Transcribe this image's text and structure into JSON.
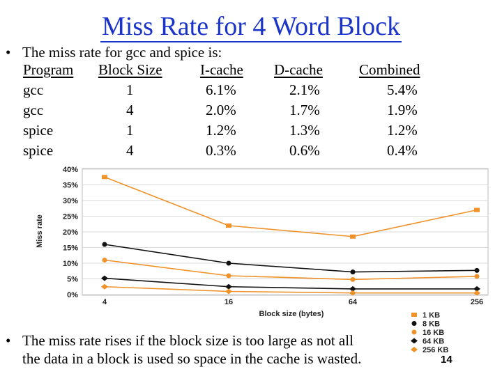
{
  "title": "Miss Rate for 4 Word Block",
  "intro": "The miss rate for gcc and spice is:",
  "table": {
    "headers": [
      "Program",
      "Block Size",
      "I-cache",
      "D-cache",
      "Combined"
    ],
    "rows": [
      [
        "gcc",
        "1",
        "6.1%",
        "2.1%",
        "5.4%"
      ],
      [
        "gcc",
        "4",
        "2.0%",
        "1.7%",
        "1.9%"
      ],
      [
        "spice",
        "1",
        "1.2%",
        "1.3%",
        "1.2%"
      ],
      [
        "spice",
        "4",
        "0.3%",
        "0.6%",
        "0.4%"
      ]
    ]
  },
  "conclusion": {
    "line1": "The miss rate rises if the block size is too large as not all",
    "line2": "the data in a block is used so space in the cache is wasted."
  },
  "page_number": "14",
  "chart_data": {
    "type": "line",
    "xlabel": "Block size (bytes)",
    "ylabel": "Miss rate",
    "categories": [
      "4",
      "16",
      "64",
      "256"
    ],
    "yticks": [
      "0%",
      "5%",
      "10%",
      "15%",
      "20%",
      "25%",
      "30%",
      "35%",
      "40%"
    ],
    "ylim": [
      0,
      40
    ],
    "legend_position": "bottom-right",
    "series": [
      {
        "name": "1 KB",
        "color": "#f0922a",
        "marker": "square",
        "values": [
          37.5,
          22,
          18.5,
          27
        ]
      },
      {
        "name": "8 KB",
        "color": "#111111",
        "marker": "circle",
        "values": [
          16,
          10,
          7.2,
          7.7
        ]
      },
      {
        "name": "16 KB",
        "color": "#f0922a",
        "marker": "circle",
        "values": [
          11,
          6,
          4.8,
          5.8
        ]
      },
      {
        "name": "64 KB",
        "color": "#111111",
        "marker": "diamond",
        "values": [
          5.2,
          2.5,
          1.8,
          1.8
        ]
      },
      {
        "name": "256 KB",
        "color": "#f0922a",
        "marker": "diamond",
        "values": [
          2.5,
          1.0,
          0.5,
          0.5
        ]
      }
    ]
  }
}
